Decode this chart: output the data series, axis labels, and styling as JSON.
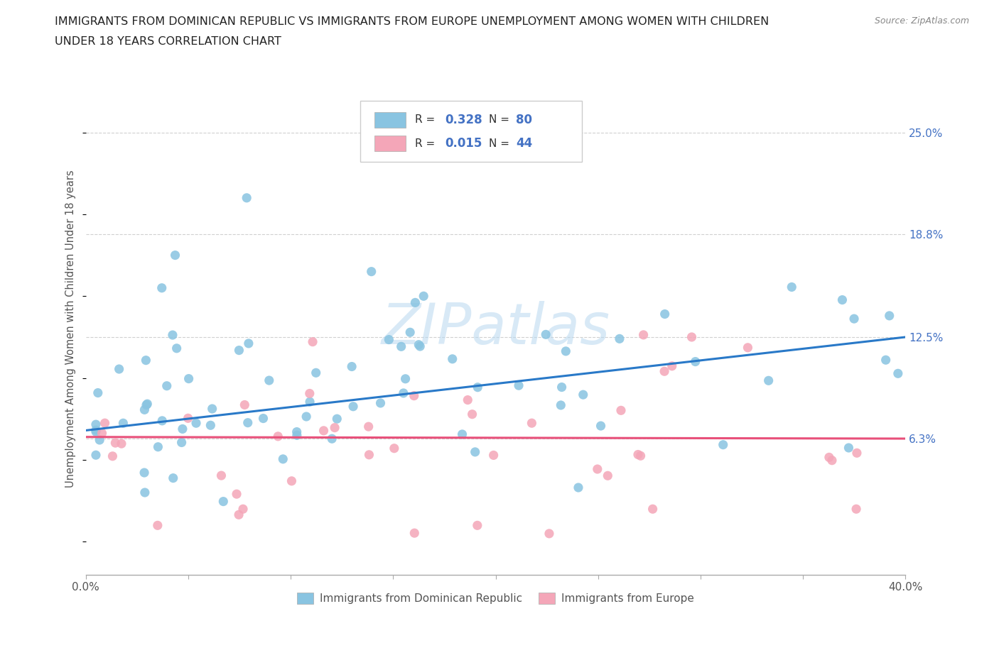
{
  "title_line1": "IMMIGRANTS FROM DOMINICAN REPUBLIC VS IMMIGRANTS FROM EUROPE UNEMPLOYMENT AMONG WOMEN WITH CHILDREN",
  "title_line2": "UNDER 18 YEARS CORRELATION CHART",
  "source": "Source: ZipAtlas.com",
  "ylabel": "Unemployment Among Women with Children Under 18 years",
  "xlim": [
    0.0,
    0.4
  ],
  "ylim": [
    -0.02,
    0.28
  ],
  "yticks": [
    0.063,
    0.125,
    0.188,
    0.25
  ],
  "ytick_labels": [
    "6.3%",
    "12.5%",
    "18.8%",
    "25.0%"
  ],
  "xticks": [
    0.0,
    0.05,
    0.1,
    0.15,
    0.2,
    0.25,
    0.3,
    0.35,
    0.4
  ],
  "blue_R": 0.328,
  "blue_N": 80,
  "pink_R": 0.015,
  "pink_N": 44,
  "blue_color": "#89c4e1",
  "pink_color": "#f4a6b8",
  "blue_line_color": "#2979c8",
  "pink_line_color": "#e8507a",
  "legend_label_blue": "Immigrants from Dominican Republic",
  "legend_label_pink": "Immigrants from Europe",
  "watermark": "ZIPatlas",
  "background_color": "#ffffff",
  "grid_color": "#d0d0d0",
  "blue_trend_x": [
    0.0,
    0.4
  ],
  "blue_trend_y": [
    0.068,
    0.125
  ],
  "pink_trend_x": [
    0.0,
    0.4
  ],
  "pink_trend_y": [
    0.064,
    0.063
  ]
}
